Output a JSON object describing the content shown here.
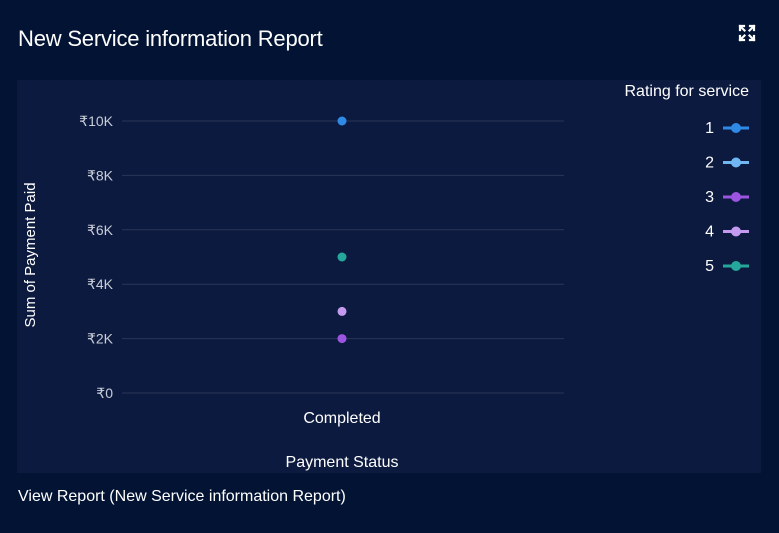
{
  "card": {
    "title": "New Service information Report",
    "expand_icon": "fullscreen-icon",
    "footer_link": "View Report (New Service information Report)"
  },
  "colors": {
    "background": "#021334",
    "panel": "#0c1a3f",
    "grid": "#2a3658",
    "tick_text": "#c9cdd8"
  },
  "chart_data": {
    "type": "scatter",
    "xlabel": "Payment Status",
    "ylabel": "Sum of Payment Paid",
    "categories": [
      "Completed"
    ],
    "y_ticks": [
      "₹0",
      "₹2K",
      "₹4K",
      "₹6K",
      "₹8K",
      "₹10K"
    ],
    "ylim": [
      0,
      10000
    ],
    "grid": true,
    "legend_title": "Rating for service",
    "legend_position": "top-right",
    "series": [
      {
        "name": "1",
        "color": "#2f8ae6",
        "values": [
          10000
        ]
      },
      {
        "name": "2",
        "color": "#6fb6f2",
        "values": [
          null
        ]
      },
      {
        "name": "3",
        "color": "#9b55e0",
        "values": [
          2000
        ]
      },
      {
        "name": "4",
        "color": "#c39af0",
        "values": [
          3000
        ]
      },
      {
        "name": "5",
        "color": "#25a89b",
        "values": [
          5000
        ]
      }
    ]
  }
}
